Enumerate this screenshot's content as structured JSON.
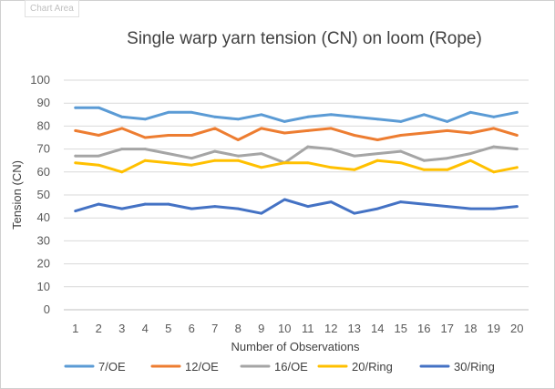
{
  "tooltip": "Chart Area",
  "chart_data": {
    "type": "line",
    "title": "Single warp yarn tension (CN) on loom (Rope)",
    "xlabel": "Number of Observations",
    "ylabel": "Tension  (CN)",
    "ylim": [
      0,
      100
    ],
    "ystep": 10,
    "grid": true,
    "legend_position": "bottom",
    "x": [
      1,
      2,
      3,
      4,
      5,
      6,
      7,
      8,
      9,
      10,
      11,
      12,
      13,
      14,
      15,
      16,
      17,
      18,
      19,
      20
    ],
    "series": [
      {
        "name": "7/OE",
        "color": "#5B9BD5",
        "values": [
          88,
          88,
          84,
          83,
          86,
          86,
          84,
          83,
          85,
          82,
          84,
          85,
          84,
          83,
          82,
          85,
          82,
          86,
          84,
          86
        ]
      },
      {
        "name": "12/OE",
        "color": "#ED7D31",
        "values": [
          78,
          76,
          79,
          75,
          76,
          76,
          79,
          74,
          79,
          77,
          78,
          79,
          76,
          74,
          76,
          77,
          78,
          77,
          79,
          76
        ]
      },
      {
        "name": "16/OE",
        "color": "#A5A5A5",
        "values": [
          67,
          67,
          70,
          70,
          68,
          66,
          69,
          67,
          68,
          64,
          71,
          70,
          67,
          68,
          69,
          65,
          66,
          68,
          71,
          70
        ]
      },
      {
        "name": "20/Ring",
        "color": "#FFC000",
        "values": [
          64,
          63,
          60,
          65,
          64,
          63,
          65,
          65,
          62,
          64,
          64,
          62,
          61,
          65,
          64,
          61,
          61,
          65,
          60,
          62
        ]
      },
      {
        "name": "30/Ring",
        "color": "#4472C4",
        "values": [
          43,
          46,
          44,
          46,
          46,
          44,
          45,
          44,
          42,
          48,
          45,
          47,
          42,
          44,
          47,
          46,
          45,
          44,
          44,
          45
        ]
      }
    ]
  }
}
